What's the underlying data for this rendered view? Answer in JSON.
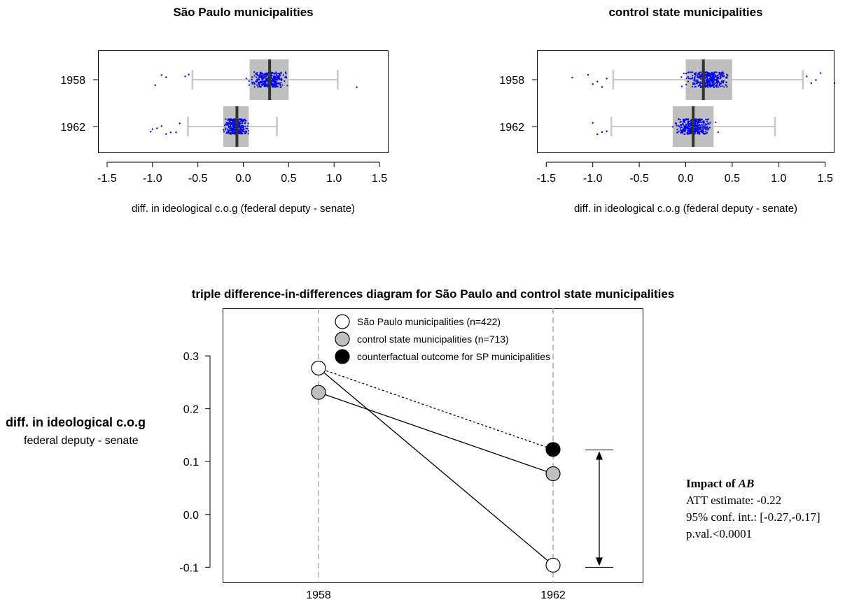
{
  "chart_data": [
    {
      "type": "box",
      "title": "São Paulo municipalities",
      "xlabel": "diff. in ideological c.o.g (federal deputy - senate)",
      "xlim": [
        -1.6,
        1.6
      ],
      "xticks": [
        -1.5,
        -1.0,
        -0.5,
        0.0,
        0.5,
        1.0,
        1.5
      ],
      "xtick_labels": [
        "-1.5",
        "-1.0",
        "-0.5",
        "0.0",
        "0.5",
        "1.0",
        "1.5"
      ],
      "categories": [
        "1958",
        "1962"
      ],
      "boxes": [
        {
          "label": "1958",
          "whisker_low": -0.56,
          "q1": 0.07,
          "median": 0.29,
          "q3": 0.5,
          "whisker_high": 1.04,
          "outliers": [
            -0.9,
            -0.97,
            -0.85,
            -0.64,
            -0.6,
            1.25
          ]
        },
        {
          "label": "1962",
          "whisker_low": -0.61,
          "q1": -0.22,
          "median": -0.07,
          "q3": 0.06,
          "whisker_high": 0.37,
          "outliers": [
            -1.02,
            -1.0,
            -0.95,
            -0.9,
            -0.85,
            -0.8,
            -0.74,
            -0.7
          ]
        }
      ],
      "point_color": "#0000ee",
      "box_color": "#bfbfbf"
    },
    {
      "type": "box",
      "title": "control state municipalities",
      "xlabel": "diff. in ideological c.o.g (federal deputy - senate)",
      "xlim": [
        -1.6,
        1.6
      ],
      "xticks": [
        -1.5,
        -1.0,
        -0.5,
        0.0,
        0.5,
        1.0,
        1.5
      ],
      "xtick_labels": [
        "-1.5",
        "-1.0",
        "-0.5",
        "0.0",
        "0.5",
        "1.0",
        "1.5"
      ],
      "categories": [
        "1958",
        "1962"
      ],
      "boxes": [
        {
          "label": "1958",
          "whisker_low": -0.78,
          "q1": 0.0,
          "median": 0.19,
          "q3": 0.5,
          "whisker_high": 1.26,
          "outliers": [
            -1.22,
            -1.05,
            -1.0,
            -0.95,
            -0.9,
            -0.85,
            1.3,
            1.35,
            1.4,
            1.45,
            1.6
          ]
        },
        {
          "label": "1962",
          "whisker_low": -0.8,
          "q1": -0.14,
          "median": 0.08,
          "q3": 0.3,
          "whisker_high": 0.96,
          "outliers": [
            -1.0,
            -0.95,
            -0.9,
            -0.85
          ]
        }
      ],
      "point_color": "#0000ee",
      "box_color": "#bfbfbf"
    },
    {
      "type": "line",
      "title": "triple difference-in-differences diagram for São Paulo and control state municipalities",
      "ylabel": "diff. in ideological c.o.g",
      "ylabel_sub": "federal deputy - senate",
      "x": [
        "1958",
        "1962"
      ],
      "ylim": [
        -0.13,
        0.39
      ],
      "yticks": [
        -0.1,
        0.0,
        0.1,
        0.2,
        0.3
      ],
      "ytick_labels": [
        "-0.1",
        "0.0",
        "0.1",
        "0.2",
        "0.3"
      ],
      "series": [
        {
          "name": "São Paulo municipalities (n=422)",
          "values": [
            0.277,
            -0.096
          ],
          "fill": "#ffffff",
          "line": "solid"
        },
        {
          "name": "control state municipalities (n=713)",
          "values": [
            0.231,
            0.077
          ],
          "fill": "#bfbfbf",
          "line": "solid"
        },
        {
          "name": "counterfactual outcome for SP municipalities",
          "values": [
            0.277,
            0.123
          ],
          "fill": "#000000",
          "line": "dotted",
          "marker_at": [
            false,
            true
          ]
        }
      ],
      "gap_arrow": {
        "from": 0.122,
        "to": -0.1
      },
      "annotation": {
        "heading": "Impact of",
        "heading_italic": "AB",
        "lines": [
          "ATT estimate: -0.22",
          "95% conf. int.: [-0.27,-0.17]",
          "p.val.<0.0001"
        ]
      }
    }
  ]
}
